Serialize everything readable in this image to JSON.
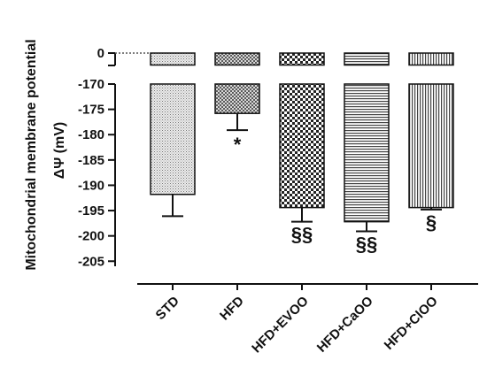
{
  "chart_data": {
    "type": "bar",
    "ylabel": "Mitochondrial membrane potential",
    "ylabel_sub": "ΔΨ (mV)",
    "y_axis_break": true,
    "ylim_upper": [
      -5,
      0
    ],
    "ylim_lower": [
      -206,
      -170
    ],
    "y_ticks_upper": [
      "0"
    ],
    "y_ticks_lower": [
      "-170",
      "-175",
      "-180",
      "-185",
      "-190",
      "-195",
      "-200",
      "-205"
    ],
    "categories": [
      "STD",
      "HFD",
      "HFD+EVOO",
      "HFD+CaOO",
      "HFD+ClOO"
    ],
    "values": [
      -191.8,
      -175.8,
      -194.4,
      -197.2,
      -194.4
    ],
    "errors": [
      4.3,
      3.3,
      2.8,
      1.9,
      0.4
    ],
    "annotations": [
      "",
      "*",
      "§§",
      "§§",
      "§"
    ],
    "patterns": [
      "fine-dots",
      "dense-check",
      "checker",
      "horizontal-lines",
      "vertical-lines"
    ]
  }
}
